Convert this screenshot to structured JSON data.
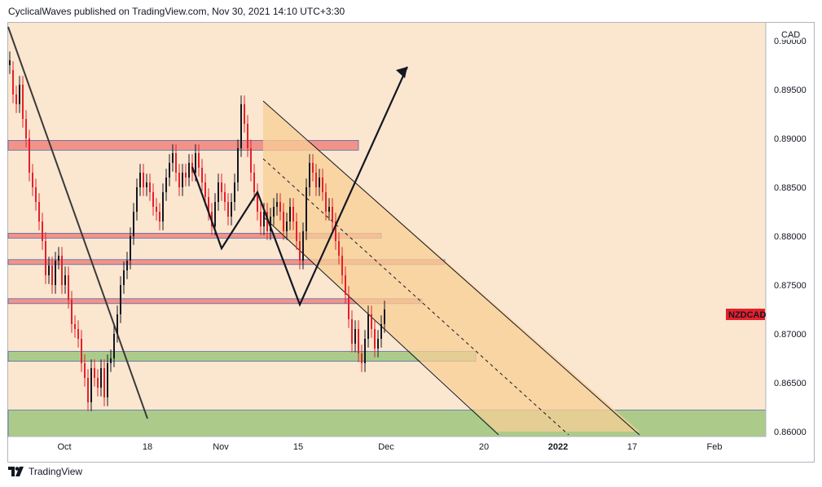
{
  "header": {
    "text": "CyclicalWaves published on TradingView.com, Nov 30, 2021 14:10 UTC+3:30"
  },
  "footer": {
    "brand": "TradingView"
  },
  "colors": {
    "background": "#fbe6cf",
    "up_candle": "#131722",
    "down_candle": "#e5202c",
    "red_zone": "#f28b82",
    "green_zone": "#a4c983",
    "channel_fill": "#f8cf96",
    "price_label": "#e5202c"
  },
  "chart_data": {
    "type": "candlestick",
    "symbol": "NZDCAD",
    "currency": "CAD",
    "y_ticks": [
      0.86,
      0.865,
      0.87,
      0.875,
      0.88,
      0.885,
      0.89,
      0.895,
      0.9
    ],
    "y_tick_labels": [
      "0.86000",
      "0.86500",
      "0.87000",
      "0.87500",
      "0.88000",
      "0.88500",
      "0.89000",
      "0.89500",
      "0.90000"
    ],
    "ylim": [
      0.8595,
      0.9025
    ],
    "x_ticks": [
      "Oct",
      "18",
      "Nov",
      "15",
      "Dec",
      "20",
      "2022",
      "17",
      "Feb"
    ],
    "grid": false,
    "last_price_label": "NZDCAD",
    "price_path": [
      [
        0.8975,
        0.898
      ],
      [
        0.897,
        0.8945
      ],
      [
        0.8945,
        0.8935
      ],
      [
        0.8935,
        0.8955
      ],
      [
        0.8955,
        0.892
      ],
      [
        0.892,
        0.89
      ],
      [
        0.89,
        0.8865
      ],
      [
        0.8865,
        0.885
      ],
      [
        0.885,
        0.8835
      ],
      [
        0.8835,
        0.8815
      ],
      [
        0.8815,
        0.8795
      ],
      [
        0.8795,
        0.876
      ],
      [
        0.876,
        0.877
      ],
      [
        0.877,
        0.875
      ],
      [
        0.875,
        0.8775
      ],
      [
        0.8775,
        0.878
      ],
      [
        0.878,
        0.875
      ],
      [
        0.875,
        0.876
      ],
      [
        0.876,
        0.8735
      ],
      [
        0.8735,
        0.871
      ],
      [
        0.871,
        0.8705
      ],
      [
        0.8705,
        0.8695
      ],
      [
        0.8695,
        0.867
      ],
      [
        0.867,
        0.8655
      ],
      [
        0.8655,
        0.863
      ],
      [
        0.863,
        0.8665
      ],
      [
        0.8665,
        0.8655
      ],
      [
        0.8655,
        0.8645
      ],
      [
        0.8645,
        0.8665
      ],
      [
        0.8665,
        0.8635
      ],
      [
        0.8635,
        0.867
      ],
      [
        0.867,
        0.8675
      ],
      [
        0.8675,
        0.87
      ],
      [
        0.87,
        0.872
      ],
      [
        0.872,
        0.875
      ],
      [
        0.875,
        0.8765
      ],
      [
        0.8765,
        0.8775
      ],
      [
        0.8775,
        0.88
      ],
      [
        0.88,
        0.8825
      ],
      [
        0.8825,
        0.885
      ],
      [
        0.885,
        0.8865
      ],
      [
        0.8865,
        0.885
      ],
      [
        0.885,
        0.8855
      ],
      [
        0.8855,
        0.8845
      ],
      [
        0.8845,
        0.883
      ],
      [
        0.883,
        0.8825
      ],
      [
        0.8825,
        0.8815
      ],
      [
        0.8815,
        0.8845
      ],
      [
        0.8845,
        0.886
      ],
      [
        0.886,
        0.8875
      ],
      [
        0.8875,
        0.8885
      ],
      [
        0.8885,
        0.8865
      ],
      [
        0.8865,
        0.885
      ],
      [
        0.885,
        0.8865
      ],
      [
        0.8865,
        0.886
      ],
      [
        0.886,
        0.8875
      ],
      [
        0.8875,
        0.8865
      ],
      [
        0.8865,
        0.8885
      ],
      [
        0.8885,
        0.887
      ],
      [
        0.887,
        0.8855
      ],
      [
        0.8855,
        0.884
      ],
      [
        0.884,
        0.8825
      ],
      [
        0.8825,
        0.881
      ],
      [
        0.881,
        0.8835
      ],
      [
        0.8835,
        0.8855
      ],
      [
        0.8855,
        0.8845
      ],
      [
        0.8845,
        0.8835
      ],
      [
        0.8835,
        0.882
      ],
      [
        0.882,
        0.8835
      ],
      [
        0.8835,
        0.8855
      ],
      [
        0.8855,
        0.889
      ],
      [
        0.889,
        0.8935
      ],
      [
        0.8935,
        0.8915
      ],
      [
        0.8915,
        0.889
      ],
      [
        0.889,
        0.8865
      ],
      [
        0.8865,
        0.8845
      ],
      [
        0.8845,
        0.8825
      ],
      [
        0.8825,
        0.881
      ],
      [
        0.881,
        0.8825
      ],
      [
        0.8825,
        0.8805
      ],
      [
        0.8805,
        0.882
      ],
      [
        0.882,
        0.883
      ],
      [
        0.883,
        0.8835
      ],
      [
        0.8835,
        0.8825
      ],
      [
        0.8825,
        0.8805
      ],
      [
        0.8805,
        0.8815
      ],
      [
        0.8815,
        0.883
      ],
      [
        0.883,
        0.8815
      ],
      [
        0.8815,
        0.8795
      ],
      [
        0.8795,
        0.8775
      ],
      [
        0.8775,
        0.8805
      ],
      [
        0.8805,
        0.885
      ],
      [
        0.885,
        0.8875
      ],
      [
        0.8875,
        0.8865
      ],
      [
        0.8865,
        0.885
      ],
      [
        0.885,
        0.886
      ],
      [
        0.886,
        0.8845
      ],
      [
        0.8845,
        0.8825
      ],
      [
        0.8825,
        0.883
      ],
      [
        0.883,
        0.8815
      ],
      [
        0.8815,
        0.8795
      ],
      [
        0.8795,
        0.878
      ],
      [
        0.878,
        0.876
      ],
      [
        0.876,
        0.874
      ],
      [
        0.874,
        0.8715
      ],
      [
        0.8715,
        0.869
      ],
      [
        0.869,
        0.8705
      ],
      [
        0.8705,
        0.868
      ],
      [
        0.868,
        0.867
      ],
      [
        0.867,
        0.8695
      ],
      [
        0.8695,
        0.872
      ],
      [
        0.872,
        0.8705
      ],
      [
        0.8705,
        0.8685
      ],
      [
        0.8685,
        0.8695
      ],
      [
        0.8695,
        0.871
      ],
      [
        0.871,
        0.8725
      ]
    ]
  }
}
